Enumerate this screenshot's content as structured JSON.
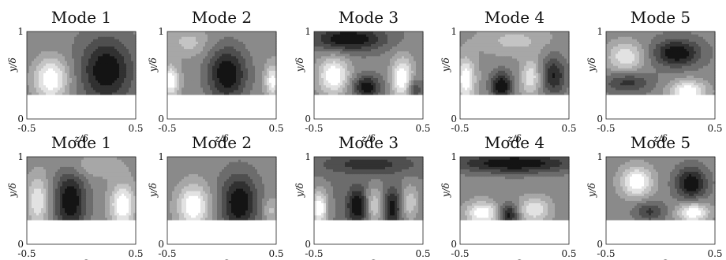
{
  "chart_data": {
    "type": "heatmap",
    "layout": {
      "rows": 2,
      "cols": 5
    },
    "xlabel": "z/δ",
    "ylabel": "y/δ",
    "xlim": [
      -0.5,
      0.5
    ],
    "ylim": [
      0,
      1
    ],
    "x_ticks": [
      "-0.5",
      "0.5"
    ],
    "y_ticks": [
      "0",
      "1"
    ],
    "data_ymin": 0.28,
    "colormap": "grayscale",
    "panels": [
      {
        "title": "Mode 1",
        "blobs": [
          {
            "z": -0.28,
            "y": 0.46,
            "amp": 1.0,
            "sz": 0.11,
            "sy": 0.17
          },
          {
            "z": 0.23,
            "y": 0.56,
            "amp": -0.9,
            "sz": 0.16,
            "sy": 0.25
          }
        ]
      },
      {
        "title": "Mode 2",
        "blobs": [
          {
            "z": -0.47,
            "y": 0.44,
            "amp": 0.9,
            "sz": 0.05,
            "sy": 0.12
          },
          {
            "z": 0.05,
            "y": 0.52,
            "amp": -1.0,
            "sz": 0.13,
            "sy": 0.22
          },
          {
            "z": 0.47,
            "y": 0.44,
            "amp": 0.8,
            "sz": 0.05,
            "sy": 0.12
          },
          {
            "z": -0.3,
            "y": 0.88,
            "amp": 0.35,
            "sz": 0.12,
            "sy": 0.1
          }
        ]
      },
      {
        "title": "Mode 3",
        "blobs": [
          {
            "z": -0.32,
            "y": 0.5,
            "amp": 1.0,
            "sz": 0.1,
            "sy": 0.15
          },
          {
            "z": 0.31,
            "y": 0.47,
            "amp": 1.0,
            "sz": 0.07,
            "sy": 0.17
          },
          {
            "z": -0.02,
            "y": 0.37,
            "amp": -0.9,
            "sz": 0.09,
            "sy": 0.09
          },
          {
            "z": -0.18,
            "y": 0.92,
            "amp": -0.95,
            "sz": 0.24,
            "sy": 0.1
          },
          {
            "z": 0.42,
            "y": 0.35,
            "amp": -0.6,
            "sz": 0.05,
            "sy": 0.08
          }
        ]
      },
      {
        "title": "Mode 4",
        "blobs": [
          {
            "z": -0.45,
            "y": 0.46,
            "amp": 0.9,
            "sz": 0.06,
            "sy": 0.16
          },
          {
            "z": -0.12,
            "y": 0.38,
            "amp": -1.0,
            "sz": 0.07,
            "sy": 0.12
          },
          {
            "z": 0.15,
            "y": 0.48,
            "amp": 0.65,
            "sz": 0.06,
            "sy": 0.14
          },
          {
            "z": 0.36,
            "y": 0.5,
            "amp": -0.8,
            "sz": 0.08,
            "sy": 0.16
          },
          {
            "z": 0.0,
            "y": 0.9,
            "amp": 0.35,
            "sz": 0.2,
            "sy": 0.1
          }
        ]
      },
      {
        "title": "Mode 5",
        "blobs": [
          {
            "z": 0.25,
            "y": 0.32,
            "amp": 1.0,
            "sz": 0.12,
            "sy": 0.09
          },
          {
            "z": 0.15,
            "y": 0.76,
            "amp": -0.95,
            "sz": 0.15,
            "sy": 0.11
          },
          {
            "z": -0.32,
            "y": 0.72,
            "amp": 0.75,
            "sz": 0.12,
            "sy": 0.12
          },
          {
            "z": -0.3,
            "y": 0.42,
            "amp": -0.6,
            "sz": 0.15,
            "sy": 0.08
          }
        ]
      },
      {
        "title": "Mode 1",
        "blobs": [
          {
            "z": -0.1,
            "y": 0.5,
            "amp": -1.0,
            "sz": 0.1,
            "sy": 0.25
          },
          {
            "z": 0.38,
            "y": 0.45,
            "amp": 1.0,
            "sz": 0.08,
            "sy": 0.17
          },
          {
            "z": -0.4,
            "y": 0.5,
            "amp": 0.75,
            "sz": 0.07,
            "sy": 0.2
          },
          {
            "z": 0.1,
            "y": 0.9,
            "amp": 0.3,
            "sz": 0.2,
            "sy": 0.1
          }
        ]
      },
      {
        "title": "Mode 2",
        "blobs": [
          {
            "z": -0.26,
            "y": 0.44,
            "amp": 1.0,
            "sz": 0.1,
            "sy": 0.17
          },
          {
            "z": 0.16,
            "y": 0.48,
            "amp": -1.0,
            "sz": 0.12,
            "sy": 0.23
          },
          {
            "z": 0.45,
            "y": 0.4,
            "amp": 0.4,
            "sz": 0.05,
            "sy": 0.1
          }
        ]
      },
      {
        "title": "Mode 3",
        "blobs": [
          {
            "z": -0.45,
            "y": 0.42,
            "amp": 1.0,
            "sz": 0.05,
            "sy": 0.14
          },
          {
            "z": -0.1,
            "y": 0.44,
            "amp": -0.8,
            "sz": 0.07,
            "sy": 0.15
          },
          {
            "z": 0.05,
            "y": 0.45,
            "amp": 0.6,
            "sz": 0.06,
            "sy": 0.15
          },
          {
            "z": 0.22,
            "y": 0.42,
            "amp": -0.7,
            "sz": 0.06,
            "sy": 0.15
          },
          {
            "z": 0.38,
            "y": 0.48,
            "amp": 0.55,
            "sz": 0.06,
            "sy": 0.15
          },
          {
            "z": 0.0,
            "y": 0.92,
            "amp": -0.5,
            "sz": 0.3,
            "sy": 0.08
          }
        ]
      },
      {
        "title": "Mode 4",
        "blobs": [
          {
            "z": -0.3,
            "y": 0.36,
            "amp": 1.0,
            "sz": 0.1,
            "sy": 0.09
          },
          {
            "z": 0.18,
            "y": 0.4,
            "amp": 0.75,
            "sz": 0.1,
            "sy": 0.1
          },
          {
            "z": -0.05,
            "y": 0.34,
            "amp": -0.9,
            "sz": 0.06,
            "sy": 0.09
          },
          {
            "z": 0.0,
            "y": 0.93,
            "amp": -1.0,
            "sz": 0.4,
            "sy": 0.08
          }
        ]
      },
      {
        "title": "Mode 5",
        "blobs": [
          {
            "z": -0.22,
            "y": 0.72,
            "amp": 1.0,
            "sz": 0.1,
            "sy": 0.12
          },
          {
            "z": 0.28,
            "y": 0.7,
            "amp": -1.0,
            "sz": 0.1,
            "sy": 0.13
          },
          {
            "z": 0.3,
            "y": 0.37,
            "amp": 1.0,
            "sz": 0.1,
            "sy": 0.08
          },
          {
            "z": -0.1,
            "y": 0.38,
            "amp": -0.6,
            "sz": 0.1,
            "sy": 0.08
          }
        ]
      }
    ]
  }
}
